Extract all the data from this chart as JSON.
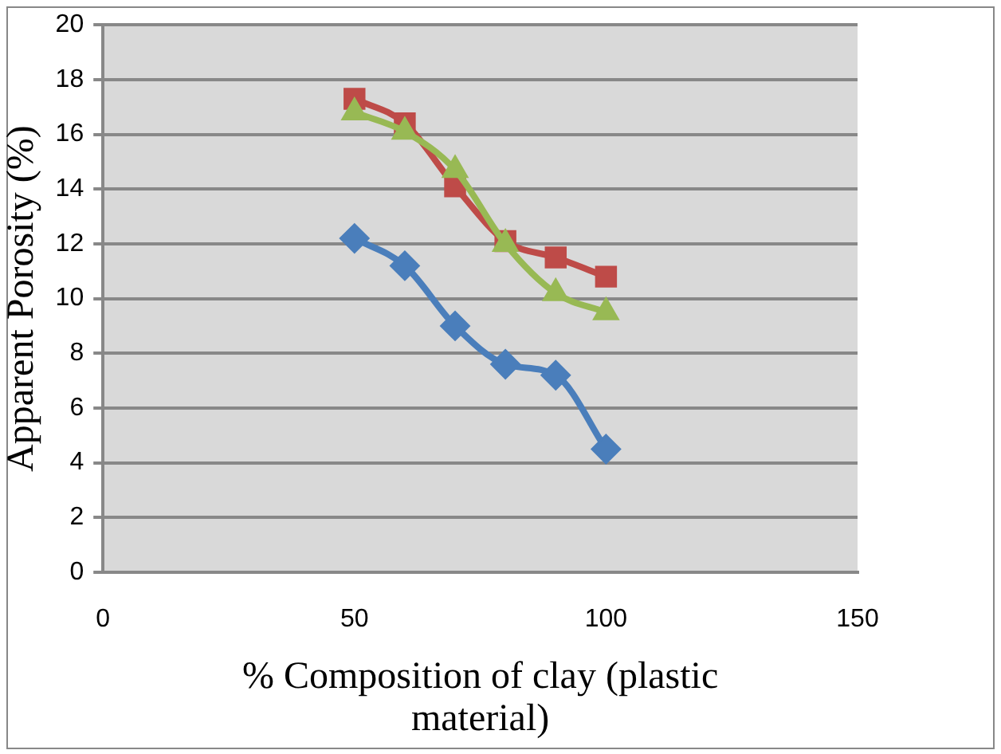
{
  "chart_data": {
    "type": "line",
    "xlabel": "% Composition of clay (plastic material)",
    "ylabel": "Apparent Porosity (%)",
    "x": [
      50,
      60,
      70,
      80,
      90,
      100
    ],
    "series": [
      {
        "color": "#4a7ebb",
        "marker": "diamond",
        "values": [
          12.2,
          11.2,
          9.0,
          7.6,
          7.2,
          4.5
        ]
      },
      {
        "color": "#be4b48",
        "marker": "square",
        "values": [
          17.3,
          16.4,
          14.1,
          12.1,
          11.5,
          10.8
        ]
      },
      {
        "color": "#98b954",
        "marker": "triangle",
        "values": [
          16.8,
          16.1,
          14.7,
          12.0,
          10.2,
          9.5
        ]
      }
    ],
    "xlim": [
      0,
      150
    ],
    "xticks": [
      0,
      50,
      100,
      150
    ],
    "ylim": [
      0,
      20
    ],
    "yticks": [
      0,
      2,
      4,
      6,
      8,
      10,
      12,
      14,
      16,
      18,
      20
    ],
    "grid": "y",
    "legend": false
  }
}
